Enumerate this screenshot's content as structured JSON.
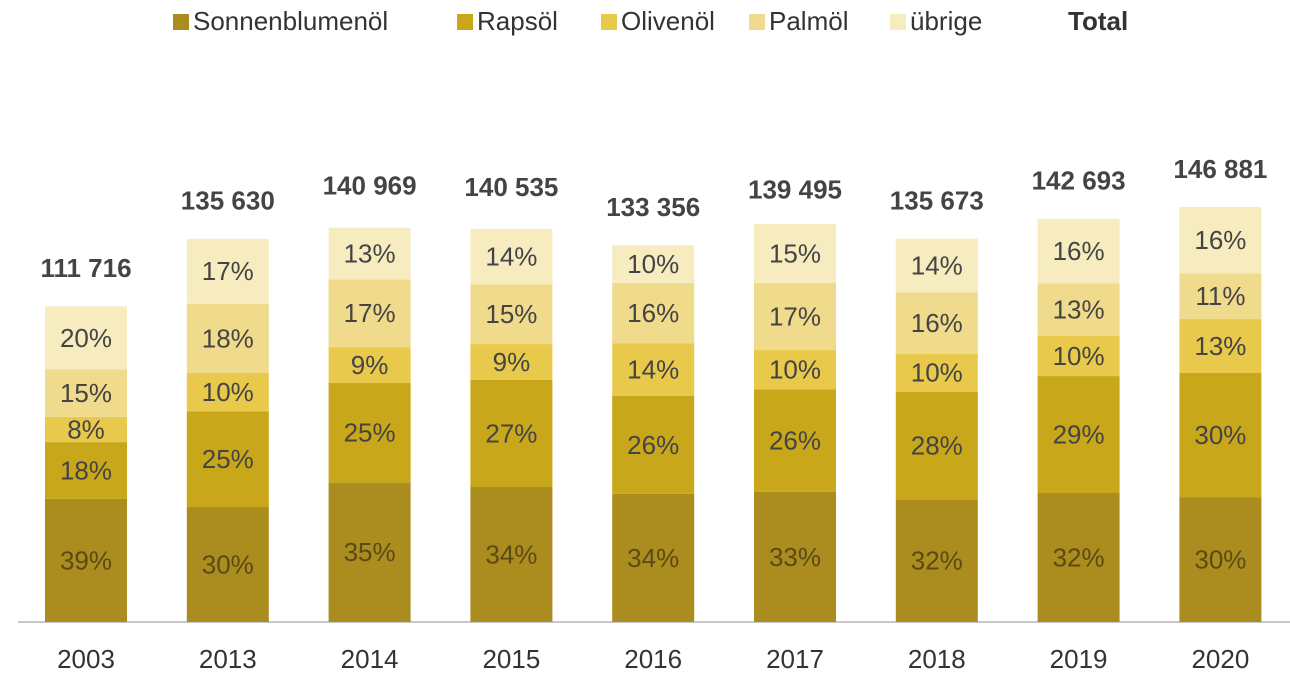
{
  "chart_data": {
    "type": "stacked-bar",
    "categories": [
      "2003",
      "2013",
      "2014",
      "2015",
      "2016",
      "2017",
      "2018",
      "2019",
      "2020"
    ],
    "series": [
      {
        "name": "Sonnenblumenöl",
        "color": "#ab8c1e",
        "values": [
          39,
          30,
          35,
          34,
          34,
          33,
          32,
          32,
          30
        ],
        "value_labels": [
          "39%",
          "30%",
          "35%",
          "34%",
          "34%",
          "33%",
          "32%",
          "32%",
          "30%"
        ]
      },
      {
        "name": "Rapsöl",
        "color": "#c9a71a",
        "values": [
          18,
          25,
          25,
          27,
          26,
          26,
          28,
          29,
          30
        ],
        "value_labels": [
          "18%",
          "25%",
          "25%",
          "27%",
          "26%",
          "26%",
          "28%",
          "29%",
          "30%"
        ]
      },
      {
        "name": "Olivenöl",
        "color": "#e8c94c",
        "values": [
          8,
          10,
          9,
          9,
          14,
          10,
          10,
          10,
          13
        ],
        "value_labels": [
          "8%",
          "10%",
          "9%",
          "9%",
          "14%",
          "10%",
          "10%",
          "10%",
          "13%"
        ]
      },
      {
        "name": "Palmöl",
        "color": "#f0da8b",
        "values": [
          15,
          18,
          17,
          15,
          16,
          17,
          16,
          13,
          11
        ],
        "value_labels": [
          "15%",
          "18%",
          "17%",
          "15%",
          "16%",
          "17%",
          "16%",
          "13%",
          "11%"
        ]
      },
      {
        "name": "übrige",
        "color": "#f7ecc0",
        "values": [
          20,
          17,
          13,
          14,
          10,
          15,
          14,
          16,
          16
        ],
        "value_labels": [
          "20%",
          "17%",
          "13%",
          "14%",
          "10%",
          "15%",
          "14%",
          "16%",
          "16%"
        ]
      }
    ],
    "total": {
      "name": "Total",
      "values": [
        111716,
        135630,
        140969,
        140535,
        133356,
        139495,
        135673,
        142693,
        146881
      ],
      "value_labels": [
        "111 716",
        "135 630",
        "140 969",
        "140 535",
        "133 356",
        "139 495",
        "135 673",
        "142 693",
        "146 881"
      ]
    }
  }
}
